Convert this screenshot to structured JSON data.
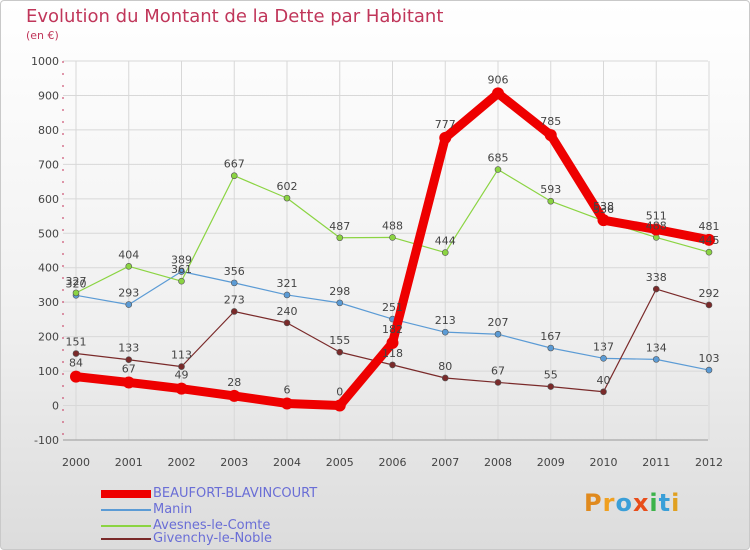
{
  "header": {
    "title": "Evolution du Montant de la Dette par Habitant",
    "subtitle": "(en €)"
  },
  "brand": {
    "text": "Proxiti",
    "letters": [
      "P",
      "r",
      "o",
      "x",
      "i",
      "t",
      "i"
    ],
    "colors": [
      "#e08a1e",
      "#f0a020",
      "#3a9fd8",
      "#e84d1a",
      "#3cb34a",
      "#3a9fd8",
      "#e0a020"
    ]
  },
  "colors": {
    "title": "#c0365a",
    "axis_text": "#444444",
    "grid": "#d8d8d8",
    "legend_text": "#6a6ed6"
  },
  "chart_data": {
    "type": "line",
    "x": [
      "2000",
      "2001",
      "2002",
      "2003",
      "2004",
      "2005",
      "2006",
      "2007",
      "2008",
      "2009",
      "2010",
      "2011",
      "2012"
    ],
    "ylim": [
      -100,
      1000
    ],
    "yticks": [
      -100,
      0,
      100,
      200,
      300,
      400,
      500,
      600,
      700,
      800,
      900,
      1000
    ],
    "grid": true,
    "legend_position": "bottom-left",
    "series": [
      {
        "name": "BEAUFORT-BLAVINCOURT",
        "color": "#ee0000",
        "values": [
          84,
          67,
          49,
          28,
          6,
          0,
          182,
          777,
          906,
          785,
          538,
          511,
          481
        ],
        "emphasis": true
      },
      {
        "name": "Manin",
        "color": "#5b9bd5",
        "values": [
          320,
          293,
          389,
          356,
          321,
          298,
          251,
          213,
          207,
          167,
          137,
          134,
          103
        ]
      },
      {
        "name": "Avesnes-le-Comte",
        "color": "#8bd442",
        "values": [
          327,
          404,
          361,
          667,
          602,
          487,
          488,
          444,
          685,
          593,
          536,
          488,
          445
        ]
      },
      {
        "name": "Givenchy-le-Noble",
        "color": "#7a2a2a",
        "values": [
          151,
          133,
          113,
          273,
          240,
          155,
          118,
          80,
          67,
          55,
          40,
          338,
          292
        ]
      }
    ]
  }
}
